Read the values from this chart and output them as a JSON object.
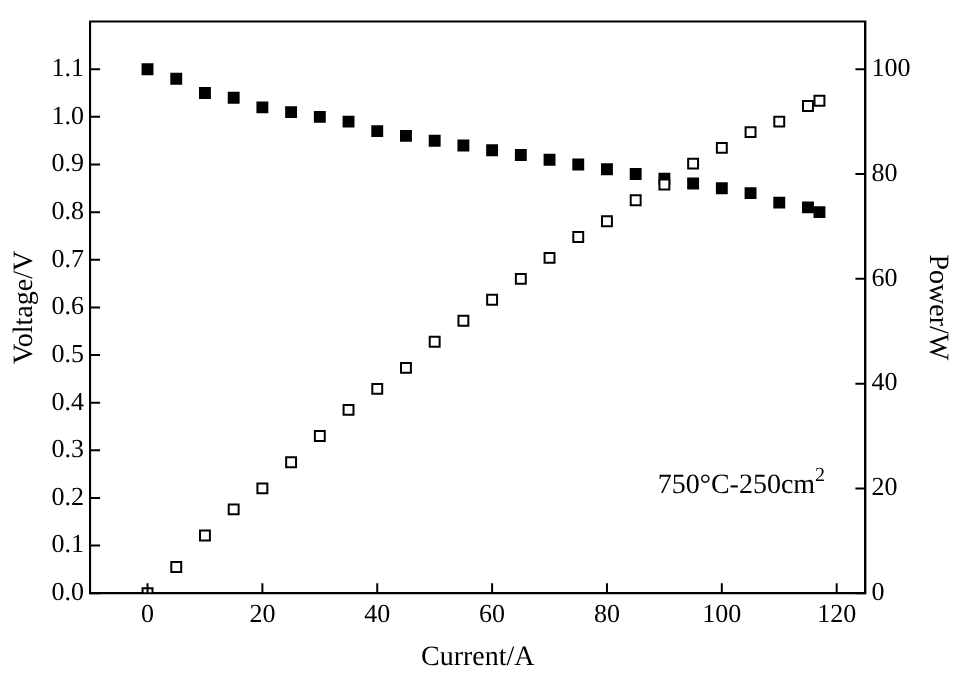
{
  "chart_data": {
    "type": "scatter",
    "xlabel": "Current/A",
    "ylabel": "Voltage/V",
    "y2label": "Power/W",
    "x": [
      0,
      5,
      10,
      15,
      20,
      25,
      30,
      35,
      40,
      45,
      50,
      55,
      60,
      65,
      70,
      75,
      80,
      85,
      90,
      95,
      100,
      105,
      110,
      115,
      117
    ],
    "series": [
      {
        "color": "#000000",
        "marker": "square",
        "values": [
          1.1,
          1.08,
          1.05,
          1.04,
          1.02,
          1.01,
          1.0,
          0.99,
          0.97,
          0.96,
          0.95,
          0.94,
          0.93,
          0.92,
          0.91,
          0.9,
          0.89,
          0.88,
          0.87,
          0.86,
          0.85,
          0.84,
          0.82,
          0.81,
          0.8
        ]
      },
      {
        "color": "#000000",
        "marker": "square",
        "axis": "y2",
        "values": [
          0,
          5,
          11,
          16,
          20,
          25,
          30,
          35,
          39,
          43,
          48,
          52,
          56,
          60,
          64,
          68,
          71,
          75,
          78,
          82,
          85,
          88,
          90,
          93,
          94
        ]
      }
    ],
    "xlim": [
      -10,
      125
    ],
    "xticks": [
      0,
      20,
      40,
      60,
      80,
      100,
      120
    ],
    "ylim": [
      0,
      1.2
    ],
    "yticks": [
      {
        "value": 0,
        "label": "0.0"
      },
      {
        "value": 0.1,
        "label": "0.1"
      },
      {
        "value": 0.2,
        "label": "0.2"
      },
      {
        "value": 0.3,
        "label": "0.3"
      },
      {
        "value": 0.4,
        "label": "0.4"
      },
      {
        "value": 0.5,
        "label": "0.5"
      },
      {
        "value": 0.6,
        "label": "0.6"
      },
      {
        "value": 0.7,
        "label": "0.7"
      },
      {
        "value": 0.8,
        "label": "0.8"
      },
      {
        "value": 0.9,
        "label": "0.9"
      },
      {
        "value": 1.0,
        "label": "1.0"
      },
      {
        "value": 1.1,
        "label": "1.1"
      }
    ],
    "y2lim": [
      0,
      109.1
    ],
    "y2ticks": [
      0,
      20,
      40,
      60,
      80,
      100
    ],
    "annotations": [
      "750°C-250cm$^{2}$"
    ],
    "grid": false,
    "legend": false
  }
}
